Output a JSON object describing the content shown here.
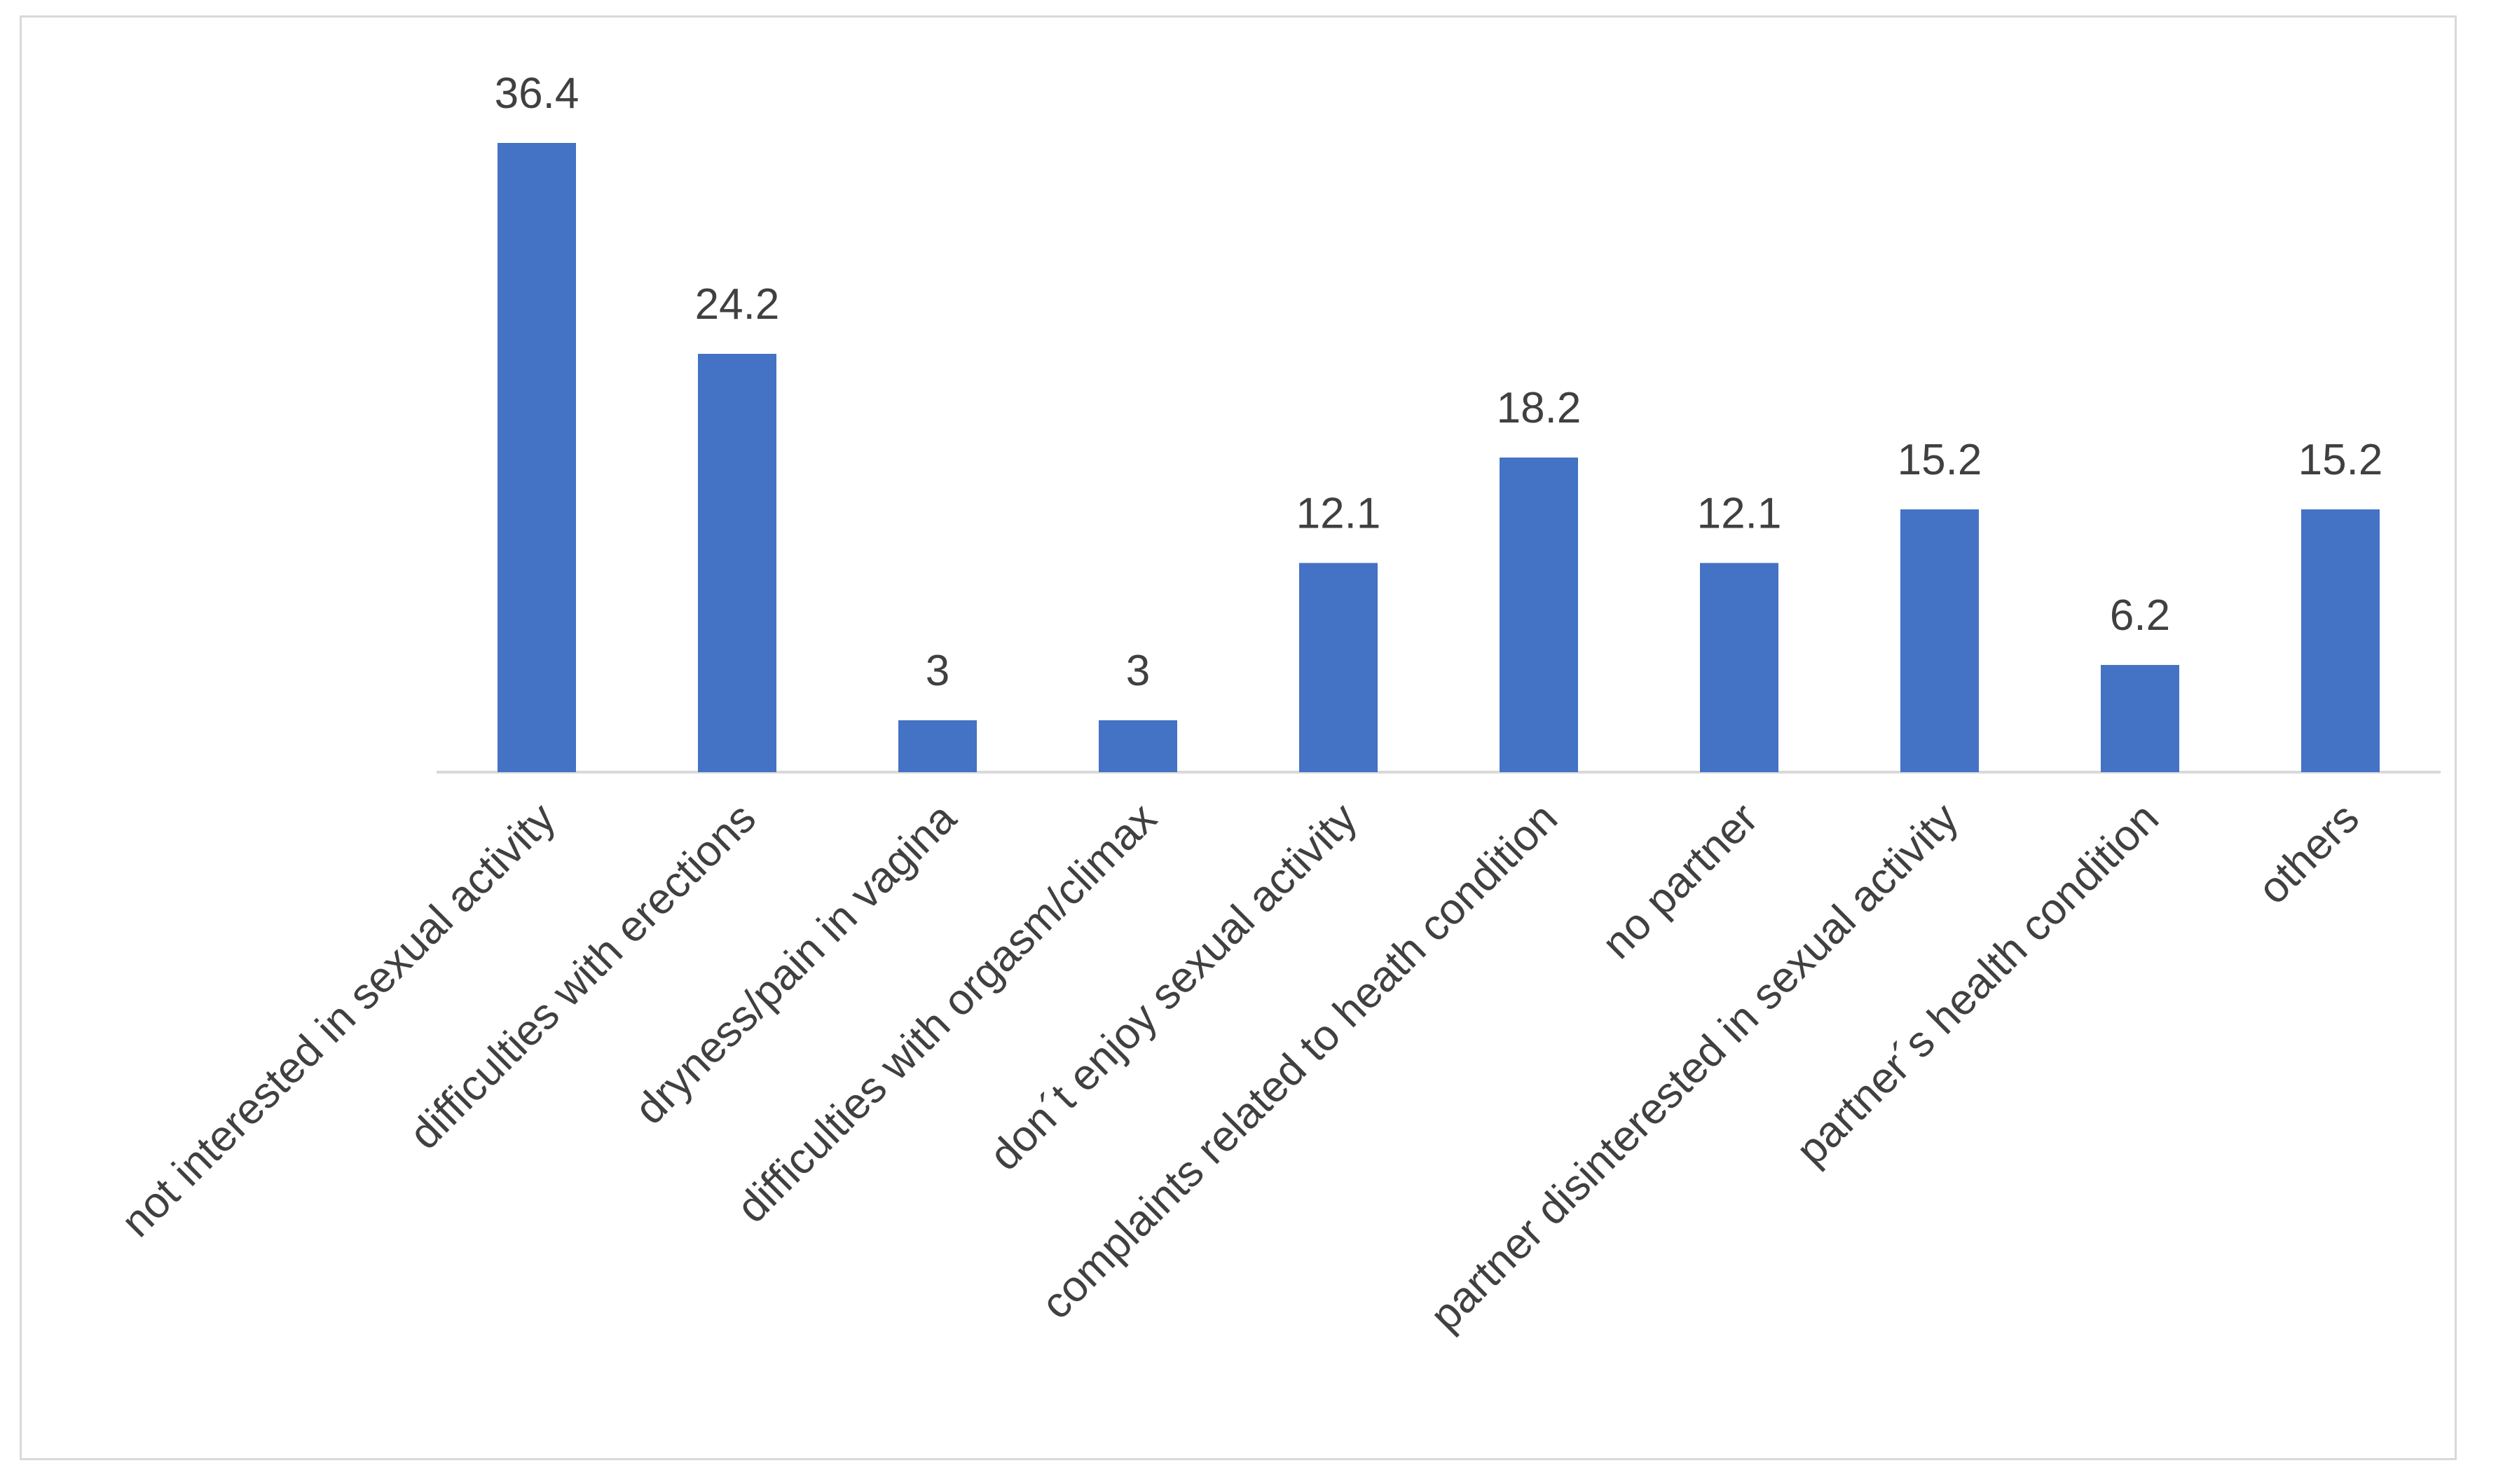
{
  "chart_data": {
    "type": "bar",
    "categories": [
      "not interested in sexual activity",
      "difficulties with erections",
      "dryness/pain in vagina",
      "difficulties with orgasm/climax",
      "don´t enjoy sexual activity",
      "complaints related to heath condition",
      "no partner",
      "partner disinterested in sexual activity",
      "partner´s health condition",
      "others"
    ],
    "values": [
      36.4,
      24.2,
      3,
      3,
      12.1,
      18.2,
      12.1,
      15.2,
      6.2,
      15.2
    ],
    "value_labels": [
      "36.4",
      "24.2",
      "3",
      "3",
      "12.1",
      "18.2",
      "12.1",
      "15.2",
      "6.2",
      "15.2"
    ],
    "ylim": [
      0,
      36.4
    ],
    "grid": false,
    "legend": "none",
    "colors": {
      "bar": "#4472c4",
      "axis": "#d9d9d9",
      "text": "#404040"
    }
  }
}
